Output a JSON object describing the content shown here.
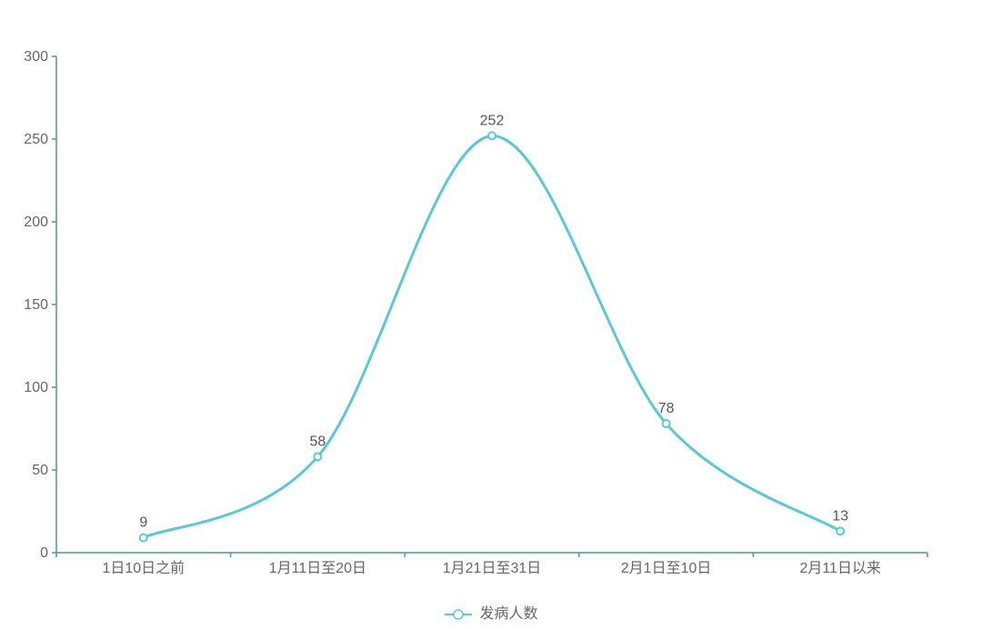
{
  "chart_data": {
    "type": "line",
    "smooth": true,
    "title": "",
    "xlabel": "",
    "ylabel": "",
    "categories": [
      "1日10日之前",
      "1月11日至20日",
      "1月21日至31日",
      "2月1日至10日",
      "2月11日以来"
    ],
    "series": [
      {
        "name": "发病人数",
        "values": [
          9,
          58,
          252,
          78,
          13
        ]
      }
    ],
    "data_labels": [
      "9",
      "58",
      "252",
      "78",
      "13"
    ],
    "ylim": [
      0,
      300
    ],
    "y_ticks": [
      0,
      50,
      100,
      150,
      200,
      250,
      300
    ],
    "grid": false,
    "legend_position": "bottom-center",
    "colors": {
      "line": "#5CC8D3",
      "marker_fill": "#FFFFFF",
      "axis": "#4E97A0",
      "tick_label": "#666666",
      "data_label": "#555555",
      "legend_text": "#666666",
      "background": "#FFFFFF"
    }
  }
}
